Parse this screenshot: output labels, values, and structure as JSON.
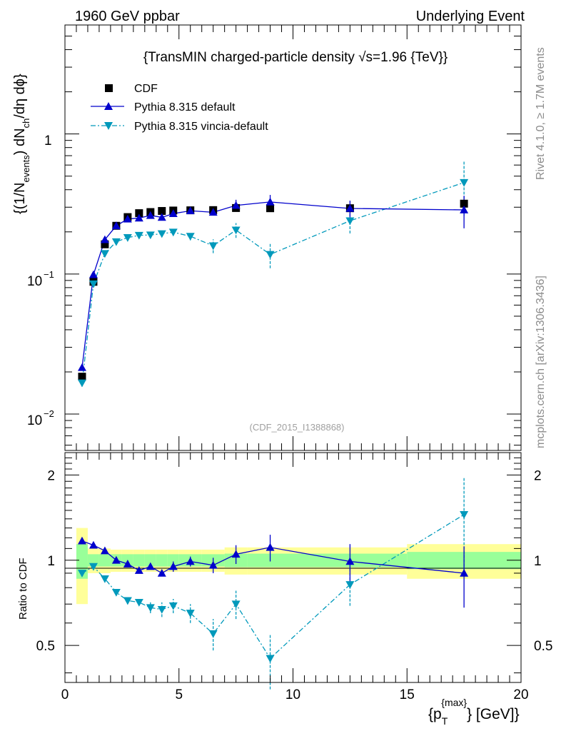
{
  "header": {
    "energy_label": "1960 GeV ppbar",
    "process_label": "Underlying Event"
  },
  "side": {
    "rivet_label": "Rivet 4.1.0, ≥ 1.7M events",
    "source_label": "mcplots.cern.ch [arXiv:1306.3436]"
  },
  "chart_data": {
    "type": "scatter",
    "title": "{TransMIN charged-particle density √s=1.96 {TeV}}",
    "analysis_id": "(CDF_2015_I1388868)",
    "ylabel": "{(1/N_events) dN_ch/dη dϕ}",
    "ratio_ylabel": "Ratio to CDF",
    "xlabel": "{p_T^{max}} [GeV]",
    "xlim": [
      0,
      20
    ],
    "ylim": [
      0.0055,
      6.0
    ],
    "ratio_ylim": [
      0.37,
      2.4
    ],
    "xticks": [
      "0",
      "5",
      "10",
      "15",
      "20"
    ],
    "yticks": [
      "10^-2",
      "10^-1",
      "1"
    ],
    "ratio_yticks": [
      "0.5",
      "1",
      "2"
    ],
    "legend": {
      "position": "top-left",
      "entries": [
        "CDF",
        "Pythia 8.315 default",
        "Pythia 8.315 vincia-default"
      ]
    },
    "x_edges": [
      0.5,
      1.0,
      1.5,
      2.0,
      2.5,
      3.0,
      3.5,
      4.0,
      4.5,
      5.0,
      6.0,
      7.0,
      8.0,
      10.0,
      15.0,
      20.0
    ],
    "x": [
      0.75,
      1.25,
      1.75,
      2.25,
      2.75,
      3.25,
      3.75,
      4.25,
      4.75,
      5.5,
      6.5,
      7.5,
      9.0,
      12.5,
      17.5
    ],
    "series": [
      {
        "name": "CDF",
        "style": "markers",
        "color": "#000000",
        "values": [
          0.0185,
          0.088,
          0.163,
          0.221,
          0.255,
          0.272,
          0.277,
          0.282,
          0.284,
          0.285,
          0.286,
          0.296,
          0.295,
          0.295,
          0.318
        ]
      },
      {
        "name": "Pythia 8.315 default",
        "style": "solid",
        "color": "#0000cc",
        "values": [
          0.0215,
          0.099,
          0.176,
          0.221,
          0.247,
          0.251,
          0.262,
          0.254,
          0.27,
          0.283,
          0.276,
          0.309,
          0.327,
          0.294,
          0.287
        ],
        "errors": [
          0,
          0,
          0,
          0,
          0,
          0,
          0,
          0,
          0,
          0,
          0.01,
          0.03,
          0.04,
          0.04,
          0.075
        ]
      },
      {
        "name": "Pythia 8.315 vincia-default",
        "style": "dashdot",
        "color": "#0099bb",
        "values": [
          0.0167,
          0.085,
          0.14,
          0.17,
          0.182,
          0.189,
          0.19,
          0.194,
          0.199,
          0.186,
          0.159,
          0.206,
          0.138,
          0.24,
          0.45
        ],
        "errors": [
          0.001,
          0.003,
          0.004,
          0.005,
          0.006,
          0.007,
          0.008,
          0.009,
          0.011,
          0.012,
          0.018,
          0.025,
          0.028,
          0.045,
          0.19
        ]
      }
    ],
    "ratio": {
      "band_inner": [
        0.14,
        0.05,
        0.05,
        0.05,
        0.05,
        0.05,
        0.05,
        0.05,
        0.05,
        0.05,
        0.05,
        0.055,
        0.055,
        0.055,
        0.07
      ],
      "band_outer": [
        0.3,
        0.1,
        0.1,
        0.09,
        0.09,
        0.09,
        0.09,
        0.09,
        0.09,
        0.09,
        0.09,
        0.11,
        0.11,
        0.11,
        0.14
      ],
      "default": [
        1.17,
        1.13,
        1.08,
        1.0,
        0.97,
        0.92,
        0.95,
        0.9,
        0.95,
        0.99,
        0.96,
        1.05,
        1.11,
        0.99,
        0.9
      ],
      "default_errors": [
        0,
        0,
        0,
        0,
        0,
        0,
        0,
        0.02,
        0.04,
        0.04,
        0.06,
        0.08,
        0.12,
        0.15,
        0.22
      ],
      "vincia": [
        0.9,
        0.95,
        0.86,
        0.77,
        0.72,
        0.71,
        0.68,
        0.67,
        0.69,
        0.65,
        0.55,
        0.7,
        0.45,
        0.82,
        1.45
      ],
      "vincia_errors": [
        0.02,
        0.02,
        0.02,
        0.02,
        0.02,
        0.02,
        0.03,
        0.04,
        0.04,
        0.05,
        0.07,
        0.08,
        0.1,
        0.13,
        0.5
      ]
    }
  }
}
